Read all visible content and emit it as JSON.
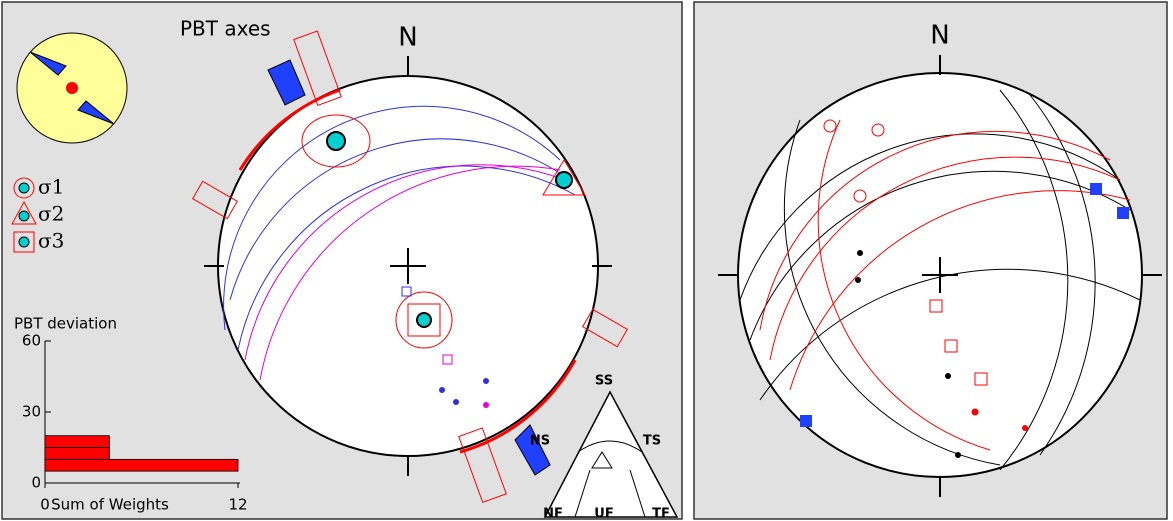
{
  "stereonet": {
    "title": "PBT axes",
    "north_left": "N",
    "north_right": "N",
    "legend": [
      "σ1",
      "σ2",
      "σ3"
    ],
    "ternary": [
      "SS",
      "NS",
      "TS",
      "NF",
      "UF",
      "TF"
    ]
  },
  "chart_data": {
    "type": "histogram",
    "orientation": "horizontal",
    "title": "PBT deviation",
    "x_label": "Sum of Weights",
    "bins": [
      5,
      10,
      15,
      20
    ],
    "values": [
      12,
      4,
      4
    ],
    "color": "#ff0000",
    "xlim": [
      0,
      12
    ],
    "xticks": [
      0,
      12
    ],
    "ylim": [
      0,
      60
    ],
    "yticks": [
      0,
      30,
      60
    ]
  }
}
